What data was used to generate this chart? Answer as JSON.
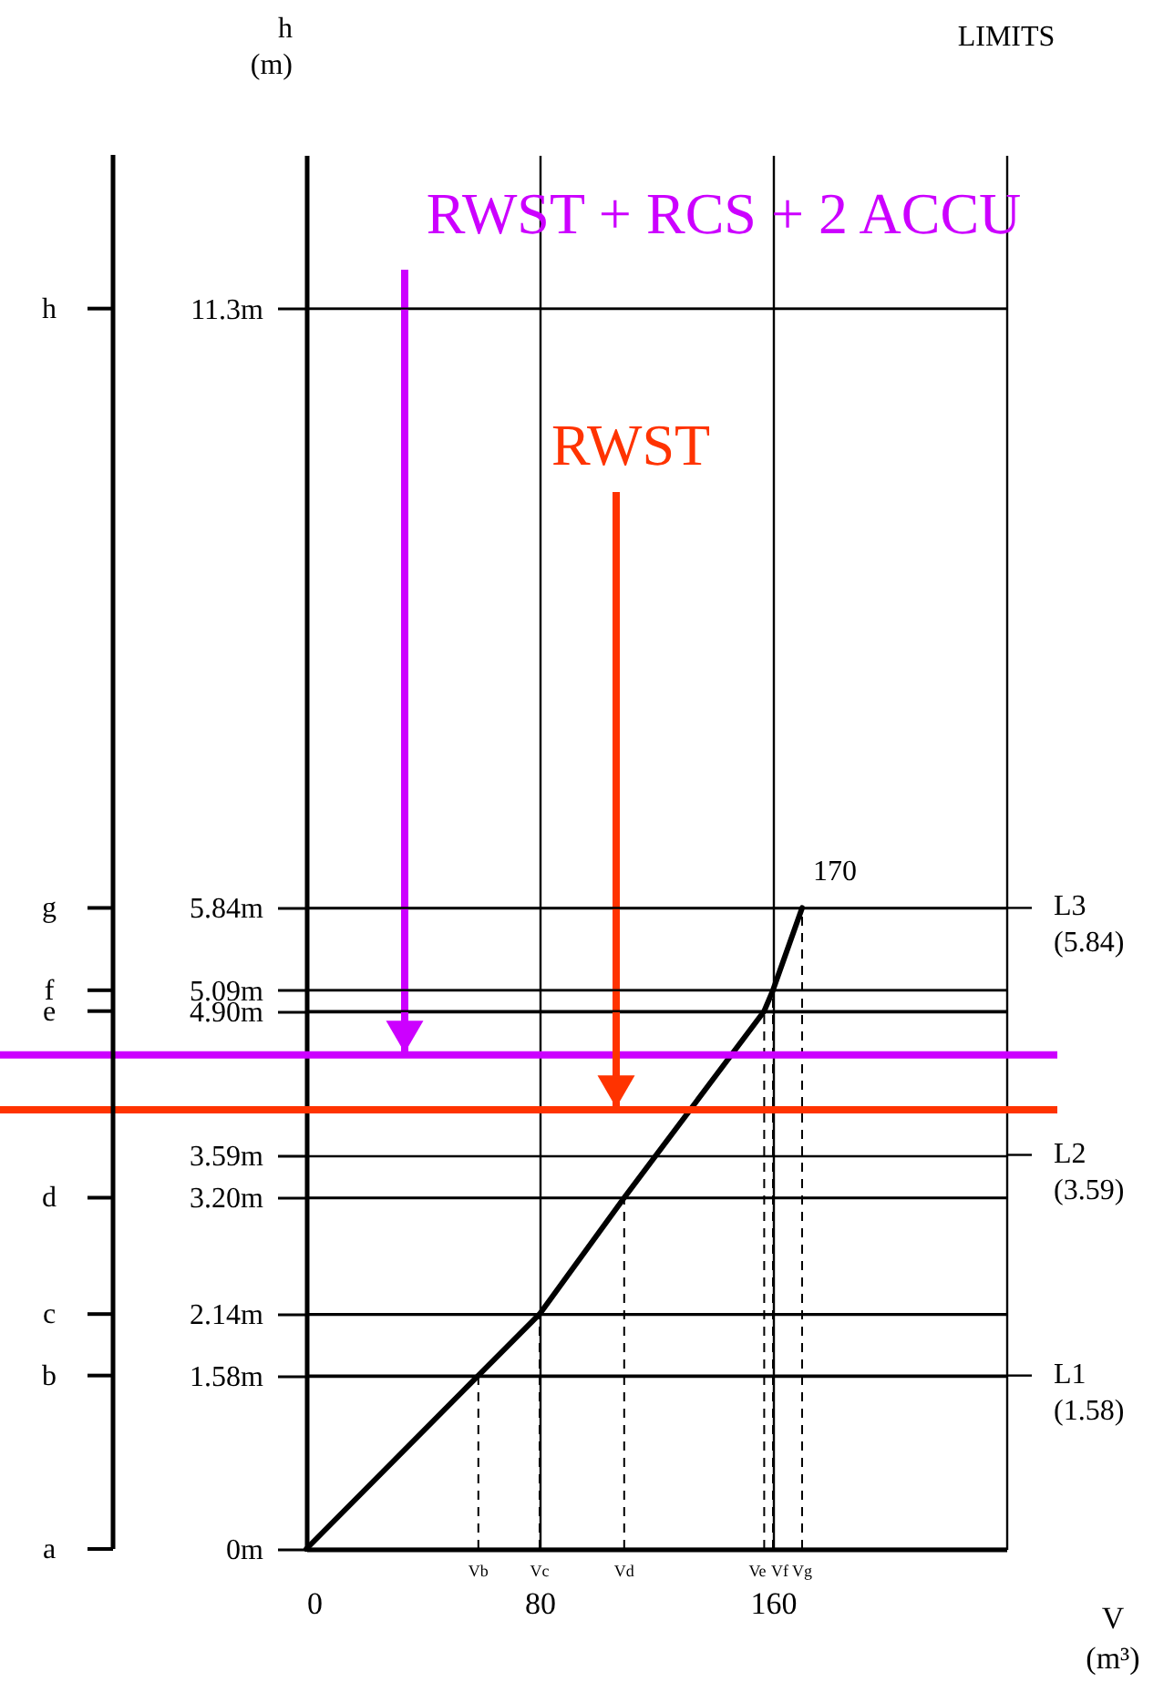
{
  "chart_data": {
    "type": "line",
    "xlabel": "V (m³)",
    "ylabel": "h (m)",
    "xlim": [
      0,
      240
    ],
    "xticks": [
      0,
      80,
      160,
      {
        "value": 240,
        "label": null
      }
    ],
    "ylim": [
      0,
      12.7
    ],
    "yticks": [
      {
        "value": 0,
        "label": "0m"
      },
      {
        "value": 1.58,
        "label": "1.58m"
      },
      {
        "value": 2.14,
        "label": "2.14m"
      },
      {
        "value": 3.2,
        "label": "3.20m"
      },
      {
        "value": 3.59,
        "label": "3.59m"
      },
      {
        "value": 4.9,
        "label": "4.90m"
      },
      {
        "value": 5.09,
        "label": "5.09m"
      },
      {
        "value": 5.84,
        "label": "5.84m"
      },
      {
        "value": 11.3,
        "label": "11.3m"
      }
    ],
    "series": [
      {
        "color": "#000000",
        "x": [
          0,
          59,
          80,
          109,
          157,
          160,
          170
        ],
        "values": [
          0,
          1.58,
          2.14,
          3.2,
          4.9,
          5.09,
          5.84
        ]
      }
    ],
    "ref_lines": [
      {
        "axis": "x",
        "value": 59,
        "label": "Vb",
        "line_style": "dashed"
      },
      {
        "axis": "x",
        "value": 80,
        "label": "Vc",
        "line_style": "dashed"
      },
      {
        "axis": "x",
        "value": 109,
        "label": "Vd",
        "line_style": "dashed"
      },
      {
        "axis": "x",
        "value": 157,
        "label": "Ve",
        "line_style": "dashed"
      },
      {
        "axis": "x",
        "value": 160,
        "label": "Vf",
        "line_style": "dashed"
      },
      {
        "axis": "x",
        "value": 170,
        "label": "Vg",
        "line_style": "dashed"
      },
      {
        "axis": "y",
        "value": 4.5,
        "label": "RWST + RCS + 2 ACCU",
        "color": "#cc00ff"
      },
      {
        "axis": "y",
        "value": 4.0,
        "label": "RWST",
        "color": "#ff3300"
      },
      {
        "axis": "y",
        "value": 0,
        "label": "a",
        "line_style": "solid"
      },
      {
        "axis": "y",
        "value": 1.58,
        "label": "b",
        "line_style": "solid"
      },
      {
        "axis": "y",
        "value": 2.14,
        "label": "c",
        "line_style": "solid"
      },
      {
        "axis": "y",
        "value": 3.2,
        "label": "d",
        "line_style": "solid"
      },
      {
        "axis": "y",
        "value": 4.9,
        "label": "e",
        "line_style": "solid"
      },
      {
        "axis": "y",
        "value": 5.09,
        "label": "f",
        "line_style": "solid"
      },
      {
        "axis": "y",
        "value": 5.84,
        "label": "g",
        "line_style": "solid"
      },
      {
        "axis": "y",
        "value": 11.3,
        "label": "h",
        "line_style": "solid"
      },
      {
        "axis": "y",
        "value": 1.58,
        "label": "L1 (1.58)"
      },
      {
        "axis": "y",
        "value": 3.59,
        "label": "L2 (3.59)"
      },
      {
        "axis": "y",
        "value": 5.84,
        "label": "L3 (5.84)"
      }
    ],
    "annotations": [
      {
        "text": "170",
        "x": 170,
        "y": 5.84
      },
      "LIMITS"
    ],
    "grid": true,
    "marker": "none",
    "line_style": "solid"
  }
}
